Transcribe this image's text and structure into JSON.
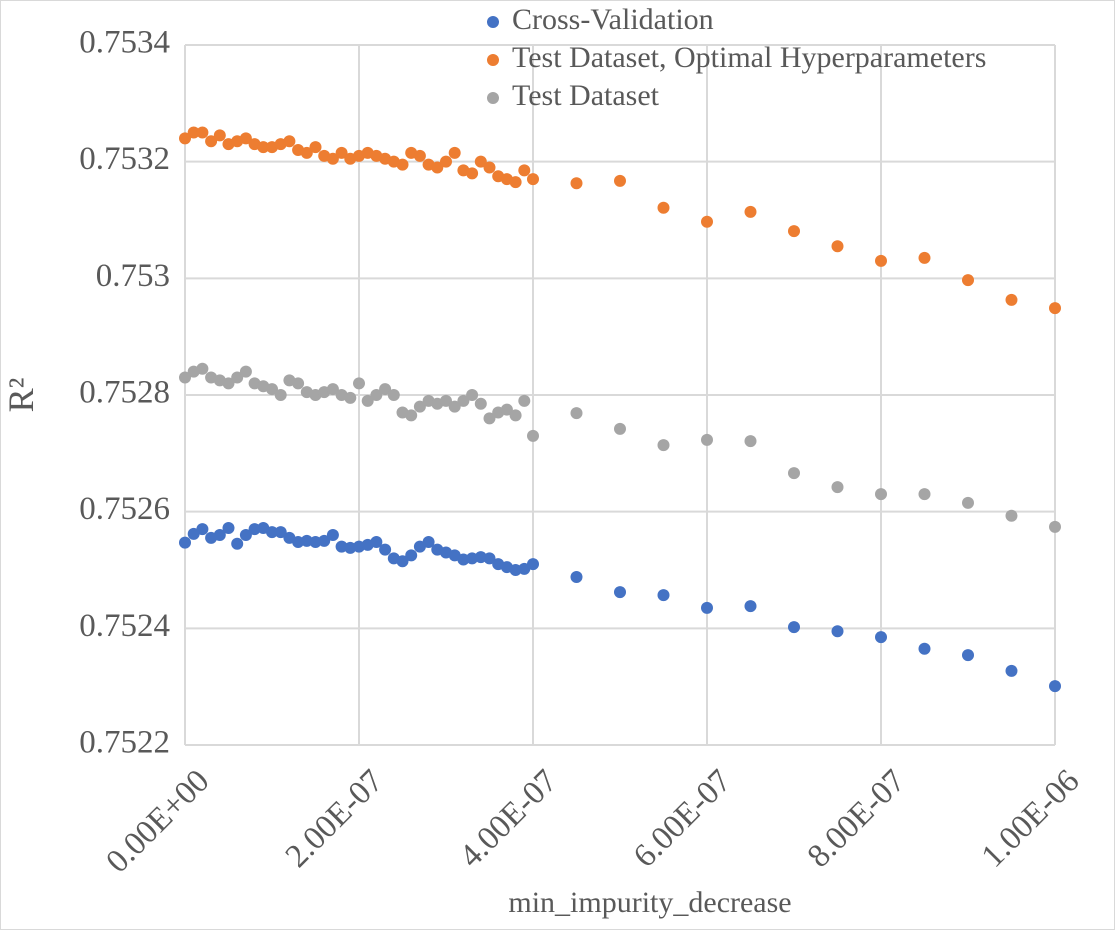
{
  "chart_data": {
    "type": "scatter",
    "x_label": "min_impurity_decrease",
    "y_label": "R²",
    "x": [
      0,
      1e-08,
      2e-08,
      3e-08,
      4e-08,
      5e-08,
      6e-08,
      7e-08,
      8e-08,
      9e-08,
      1e-07,
      1.1e-07,
      1.2e-07,
      1.3e-07,
      1.4e-07,
      1.5e-07,
      1.6e-07,
      1.7e-07,
      1.8e-07,
      1.9e-07,
      2e-07,
      2.1e-07,
      2.2e-07,
      2.3e-07,
      2.4e-07,
      2.5e-07,
      2.6e-07,
      2.7e-07,
      2.8e-07,
      2.9e-07,
      3e-07,
      3.1e-07,
      3.2e-07,
      3.3e-07,
      3.4e-07,
      3.5e-07,
      3.6e-07,
      3.7e-07,
      3.8e-07,
      3.9e-07,
      4e-07,
      4.5e-07,
      5e-07,
      5.5e-07,
      6e-07,
      6.5e-07,
      7e-07,
      7.5e-07,
      8e-07,
      8.5e-07,
      9e-07,
      9.5e-07,
      1e-06
    ],
    "series": [
      {
        "name": "Cross-Validation",
        "color": "#4472c4",
        "values": [
          0.752547,
          0.752562,
          0.75257,
          0.752555,
          0.75256,
          0.752572,
          0.752545,
          0.75256,
          0.75257,
          0.752572,
          0.752565,
          0.752565,
          0.752555,
          0.752548,
          0.75255,
          0.752548,
          0.75255,
          0.75256,
          0.75254,
          0.752538,
          0.75254,
          0.752543,
          0.752548,
          0.752535,
          0.75252,
          0.752515,
          0.752525,
          0.75254,
          0.752548,
          0.752535,
          0.75253,
          0.752525,
          0.752518,
          0.75252,
          0.752522,
          0.75252,
          0.75251,
          0.752505,
          0.7525,
          0.752502,
          0.75251,
          0.752488,
          0.752462,
          0.752457,
          0.752435,
          0.752438,
          0.752402,
          0.752395,
          0.752385,
          0.752365,
          0.752354,
          0.752327,
          0.752301
        ]
      },
      {
        "name": "Test Dataset, Optimal Hyperparameters",
        "color": "#ed7d31",
        "values": [
          0.75324,
          0.75325,
          0.75325,
          0.753235,
          0.753245,
          0.75323,
          0.753235,
          0.75324,
          0.75323,
          0.753225,
          0.753225,
          0.75323,
          0.753235,
          0.75322,
          0.753215,
          0.753225,
          0.75321,
          0.753205,
          0.753215,
          0.753205,
          0.75321,
          0.753215,
          0.75321,
          0.753205,
          0.7532,
          0.753195,
          0.753215,
          0.75321,
          0.753195,
          0.75319,
          0.7532,
          0.753215,
          0.753185,
          0.75318,
          0.7532,
          0.75319,
          0.753175,
          0.75317,
          0.753165,
          0.753185,
          0.75317,
          0.753163,
          0.753167,
          0.753121,
          0.753097,
          0.753114,
          0.753081,
          0.753055,
          0.75303,
          0.753035,
          0.752997,
          0.752963,
          0.752949
        ]
      },
      {
        "name": "Test Dataset",
        "color": "#a5a5a5",
        "values": [
          0.75283,
          0.75284,
          0.752845,
          0.75283,
          0.752825,
          0.75282,
          0.75283,
          0.75284,
          0.75282,
          0.752815,
          0.75281,
          0.7528,
          0.752825,
          0.75282,
          0.752805,
          0.7528,
          0.752805,
          0.75281,
          0.7528,
          0.752795,
          0.75282,
          0.75279,
          0.7528,
          0.75281,
          0.7528,
          0.75277,
          0.752765,
          0.75278,
          0.75279,
          0.752785,
          0.75279,
          0.75278,
          0.75279,
          0.7528,
          0.752785,
          0.75276,
          0.75277,
          0.752775,
          0.752765,
          0.75279,
          0.75273,
          0.752769,
          0.752742,
          0.752714,
          0.752723,
          0.752721,
          0.752666,
          0.752642,
          0.75263,
          0.75263,
          0.752615,
          0.752593,
          0.752574
        ]
      }
    ],
    "xlim": [
      0,
      1e-06
    ],
    "xticks": [
      {
        "value": 0,
        "label": "0.00E+00"
      },
      {
        "value": 2e-07,
        "label": "2.00E-07"
      },
      {
        "value": 4e-07,
        "label": "4.00E-07"
      },
      {
        "value": 6e-07,
        "label": "6.00E-07"
      },
      {
        "value": 8e-07,
        "label": "8.00E-07"
      },
      {
        "value": 1e-06,
        "label": "1.00E-06"
      }
    ],
    "ylim": [
      0.7522,
      0.7534
    ],
    "yticks": [
      0.7522,
      0.7524,
      0.7526,
      0.7528,
      0.753,
      0.7532,
      0.7534
    ],
    "grid": true
  }
}
